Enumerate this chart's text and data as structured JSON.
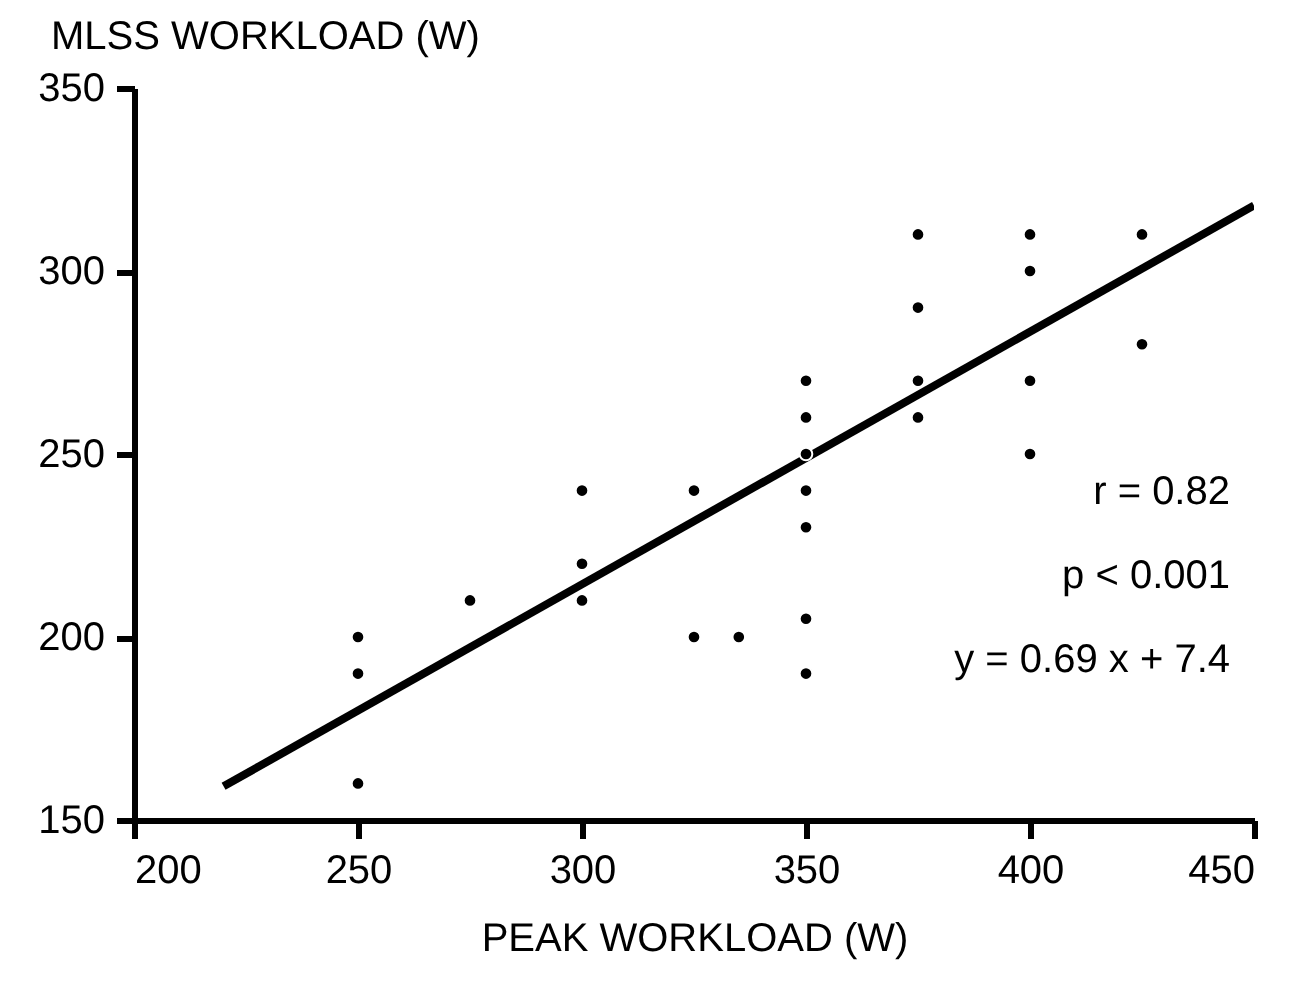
{
  "chart_data": {
    "type": "scatter",
    "xlabel": "PEAK WORKLOAD (W)",
    "ylabel": "MLSS WORKLOAD (W)",
    "xlim": [
      200,
      450
    ],
    "xticks": [
      200,
      250,
      300,
      350,
      400,
      450
    ],
    "ylim": [
      150,
      350
    ],
    "yticks": [
      150,
      200,
      250,
      300,
      350
    ],
    "grid": false,
    "series": [
      {
        "type": "line",
        "color": "#000000",
        "x": [
          220,
          450
        ],
        "values": [
          159.2,
          317.9
        ]
      },
      {
        "marker": "circle",
        "color": "#000000",
        "x": [
          250,
          250,
          250,
          275,
          300,
          300,
          300,
          325,
          325,
          335,
          350,
          350,
          350,
          350,
          350,
          350,
          350,
          375,
          375,
          375,
          375,
          400,
          400,
          400,
          400,
          425,
          425
        ],
        "values": [
          200,
          190,
          160,
          210,
          240,
          220,
          210,
          240,
          200,
          200,
          270,
          260,
          250,
          240,
          230,
          205,
          190,
          310,
          290,
          270,
          260,
          310,
          300,
          270,
          250,
          310,
          280
        ]
      }
    ],
    "annotations": [
      "r = 0.82",
      "p < 0.001",
      "y = 0.69 x + 7.4"
    ]
  }
}
